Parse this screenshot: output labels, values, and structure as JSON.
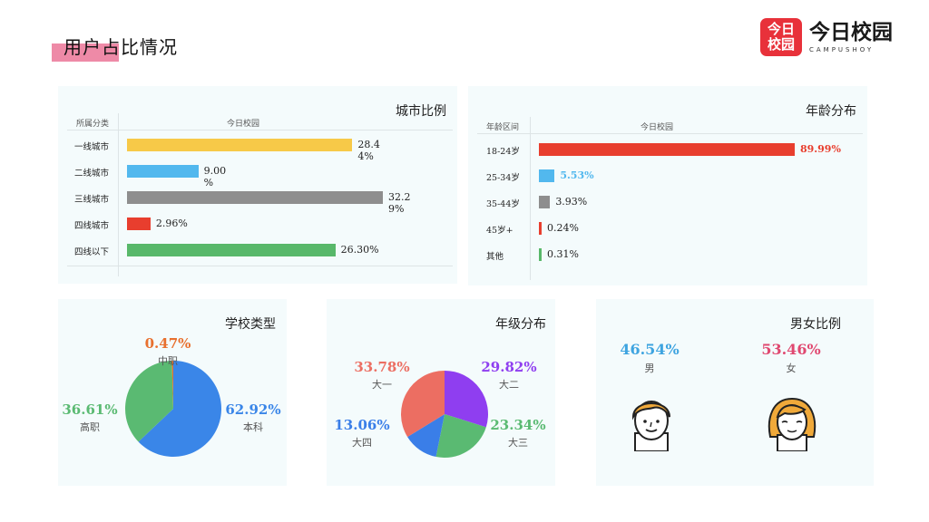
{
  "header": {
    "title": "用户占比情况"
  },
  "logo": {
    "mark_line1": "今日",
    "mark_line2": "校园",
    "text": "今日校园",
    "sub": "CAMPUSHOY"
  },
  "colors": {
    "yellow": "#f7c948",
    "blue": "#52b8ee",
    "gray": "#8e8e8e",
    "red": "#e83e2e",
    "green": "#58b86a",
    "school_blue": "#3a86e8",
    "school_green": "#5aba72",
    "school_orange": "#e8702e",
    "grade_purple": "#8f3ef0",
    "grade_green": "#5aba72",
    "grade_blue": "#3a7ee8",
    "grade_salmon": "#ec6e62",
    "male": "#3ea4e0",
    "female": "#e04870"
  },
  "chart_data": [
    {
      "type": "bar",
      "title": "城市比例",
      "col_category": "所属分类",
      "col_series": "今日校园",
      "categories": [
        "一线城市",
        "二线城市",
        "三线城市",
        "四线城市",
        "四线以下"
      ],
      "values": [
        28.44,
        9.0,
        32.29,
        2.96,
        26.3
      ],
      "value_labels": [
        [
          "28.4",
          "4%"
        ],
        [
          "9.00",
          "%"
        ],
        [
          "32.2",
          "9%"
        ],
        [
          "2.96%"
        ],
        [
          "26.30%"
        ]
      ],
      "bar_colors": [
        "#f7c948",
        "#52b8ee",
        "#8e8e8e",
        "#e83e2e",
        "#58b86a"
      ],
      "xlim": [
        0,
        32.29
      ]
    },
    {
      "type": "bar",
      "title": "年龄分布",
      "col_category": "年龄区间",
      "col_series": "今日校园",
      "categories": [
        "18-24岁",
        "25-34岁",
        "35-44岁",
        "45岁+",
        "其他"
      ],
      "values": [
        89.99,
        5.53,
        3.93,
        0.24,
        0.31
      ],
      "value_labels": [
        [
          "89.99%"
        ],
        [
          "5.53%"
        ],
        [
          "3.93%"
        ],
        [
          "0.24%"
        ],
        [
          "0.31%"
        ]
      ],
      "bar_colors": [
        "#e83e2e",
        "#52b8ee",
        "#8e8e8e",
        "#e83e2e",
        "#58b86a"
      ],
      "label_colors": [
        "#e83e2e",
        "#52b8ee",
        "#222222",
        "#222222",
        "#222222"
      ],
      "xlim": [
        0,
        89.99
      ]
    },
    {
      "type": "pie",
      "title": "学校类型",
      "slices": [
        {
          "name": "本科",
          "value": 62.92,
          "label": "62.92%",
          "color": "#3a86e8"
        },
        {
          "name": "高职",
          "value": 36.61,
          "label": "36.61%",
          "color": "#5aba72"
        },
        {
          "name": "中职",
          "value": 0.47,
          "label": "0.47%",
          "color": "#e8702e"
        }
      ]
    },
    {
      "type": "pie",
      "title": "年级分布",
      "slices": [
        {
          "name": "大二",
          "value": 29.82,
          "label": "29.82%",
          "color": "#8f3ef0"
        },
        {
          "name": "大三",
          "value": 23.34,
          "label": "23.34%",
          "color": "#5aba72"
        },
        {
          "name": "大四",
          "value": 13.06,
          "label": "13.06%",
          "color": "#3a7ee8"
        },
        {
          "name": "大一",
          "value": 33.78,
          "label": "33.78%",
          "color": "#ec6e62"
        }
      ]
    }
  ],
  "gender": {
    "title": "男女比例",
    "male": {
      "label": "46.54%",
      "name": "男"
    },
    "female": {
      "label": "53.46%",
      "name": "女"
    }
  }
}
